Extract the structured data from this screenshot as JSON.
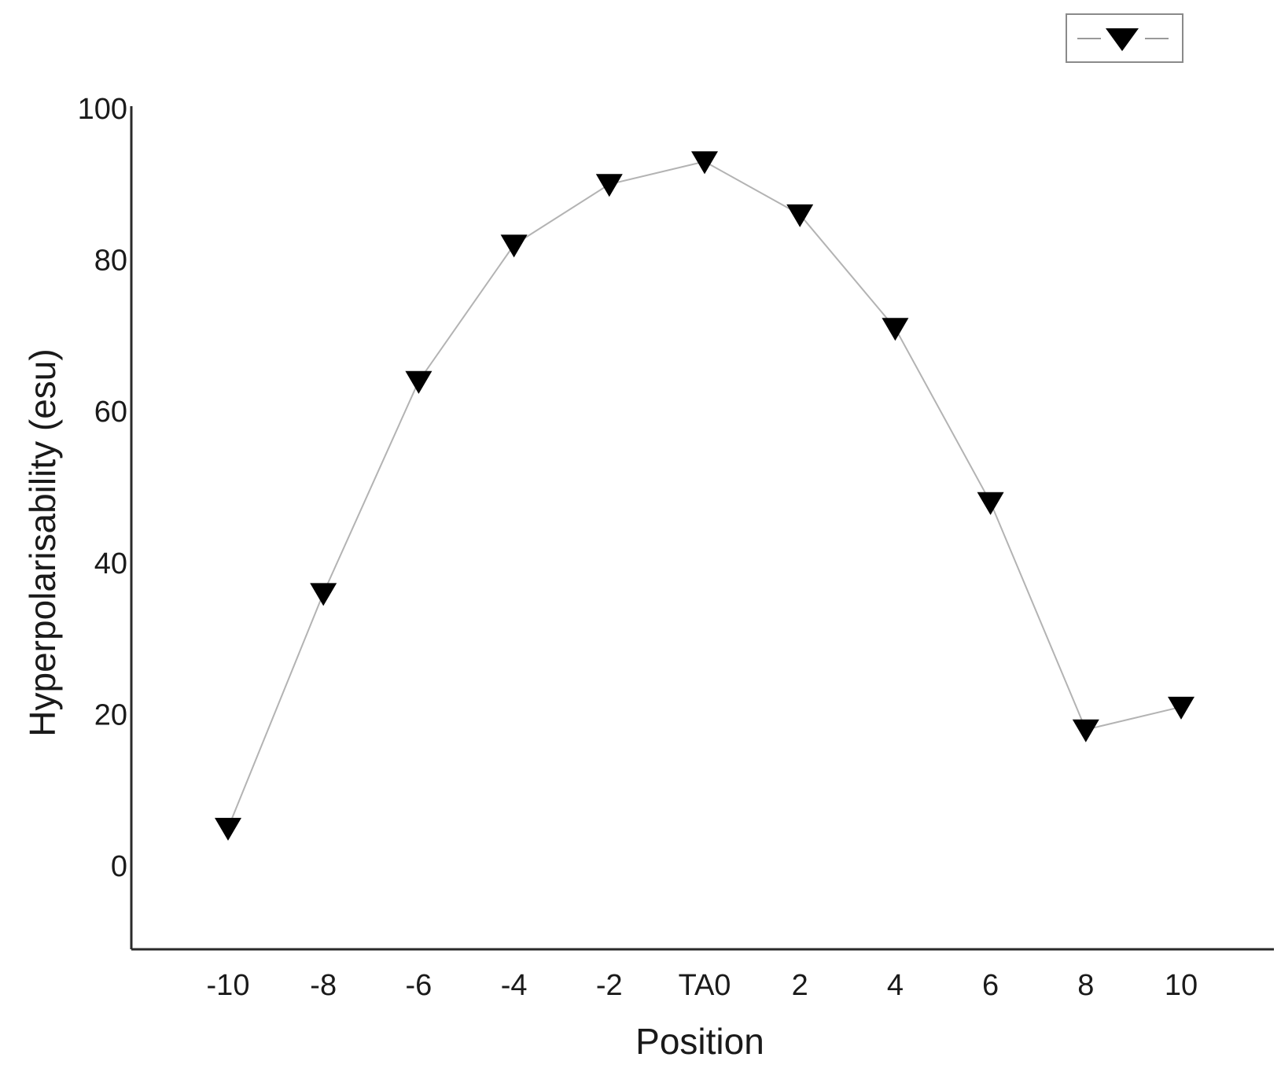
{
  "chart_data": {
    "type": "line",
    "title": "",
    "xlabel": "Position",
    "ylabel": "Hyperpolarisability (esu)",
    "categories": [
      "-10",
      "-8",
      "-6",
      "-4",
      "-2",
      "TA0",
      "2",
      "4",
      "6",
      "8",
      "10"
    ],
    "series": [
      {
        "name": "",
        "marker": "triangle-down",
        "line_color": "#b3b3b3",
        "marker_color": "#000000",
        "values": [
          5,
          36,
          64,
          82,
          90,
          93,
          86,
          71,
          48,
          18,
          21
        ]
      }
    ],
    "yticks": [
      "0",
      "20",
      "40",
      "60",
      "80",
      "100"
    ],
    "ylim": [
      -11,
      100
    ],
    "grid": false,
    "legend": "top-right"
  }
}
